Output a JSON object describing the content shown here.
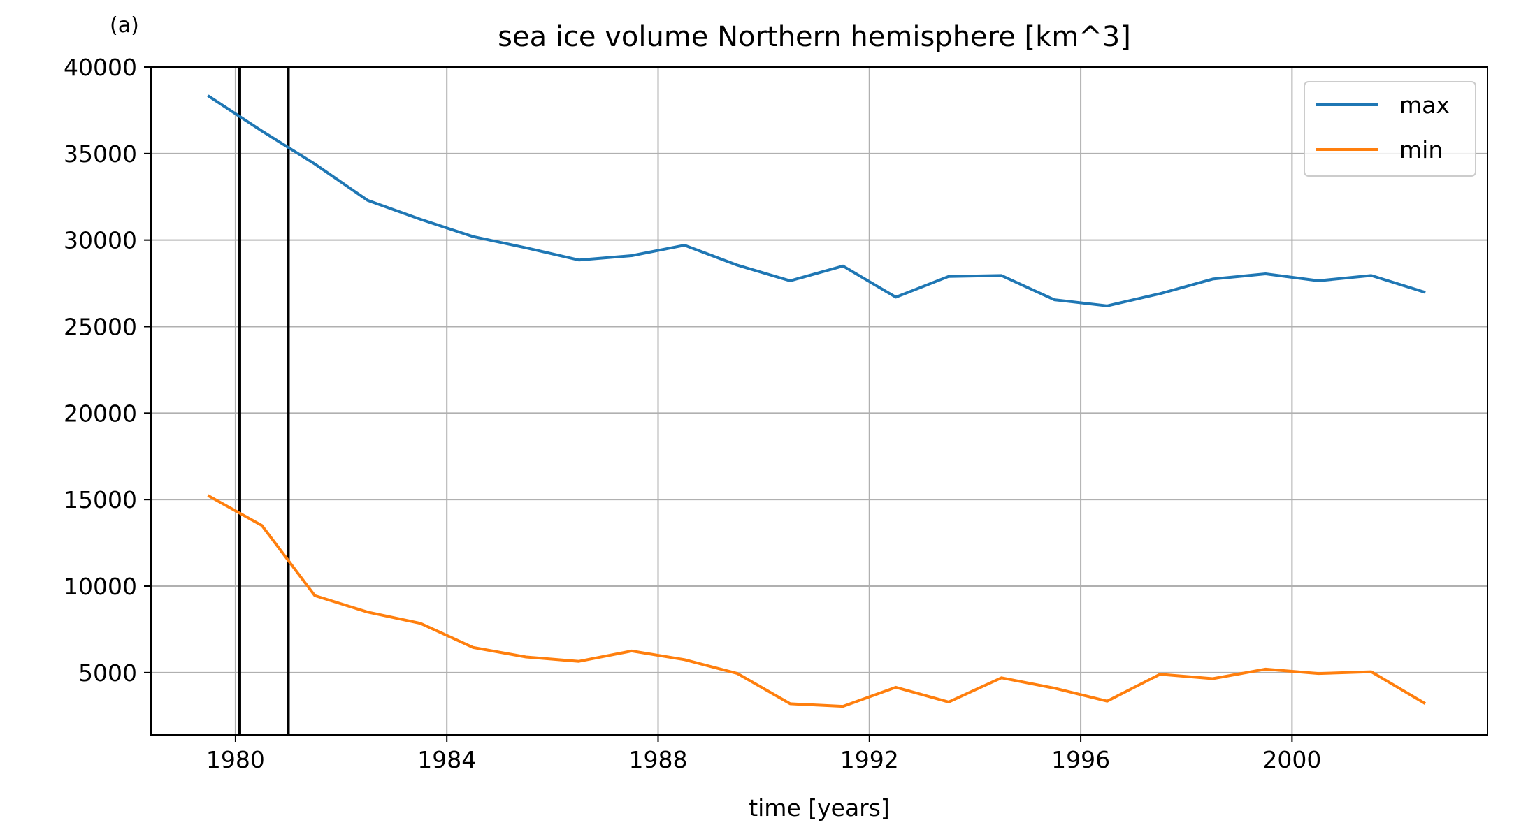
{
  "panel_label": "(a)",
  "chart_data": {
    "type": "line",
    "title": "sea ice volume Northern hemisphere [km^3]",
    "xlabel": "time [years]",
    "ylabel": "",
    "xlim": [
      1978.4,
      2003.7
    ],
    "ylim": [
      1400,
      40000
    ],
    "x_ticks": [
      1980,
      1984,
      1988,
      1992,
      1996,
      2000
    ],
    "y_ticks": [
      5000,
      10000,
      15000,
      20000,
      25000,
      30000,
      35000,
      40000
    ],
    "grid": true,
    "legend_position": "top-right",
    "vertical_lines": [
      1980.08,
      1981.0
    ],
    "x": [
      1979.5,
      1980.5,
      1981.5,
      1982.5,
      1983.5,
      1984.5,
      1985.5,
      1986.5,
      1987.5,
      1988.5,
      1989.5,
      1990.5,
      1991.5,
      1992.5,
      1993.5,
      1994.5,
      1995.5,
      1996.5,
      1997.5,
      1998.5,
      1999.5,
      2000.5,
      2001.5,
      2002.5
    ],
    "series": [
      {
        "name": "max",
        "color": "#1f77b4",
        "values": [
          38300,
          36300,
          34400,
          32300,
          31200,
          30200,
          29550,
          28850,
          29100,
          29700,
          28550,
          27650,
          28500,
          26700,
          27900,
          27950,
          26550,
          26200,
          26900,
          27750,
          28050,
          27650,
          27950,
          27000
        ]
      },
      {
        "name": "min",
        "color": "#ff7f0e",
        "values": [
          15200,
          13500,
          9450,
          8500,
          7850,
          6450,
          5900,
          5650,
          6250,
          5750,
          4950,
          3200,
          3050,
          4150,
          3300,
          4700,
          4100,
          3350,
          4900,
          4650,
          5200,
          4950,
          5050,
          3250
        ]
      }
    ]
  }
}
